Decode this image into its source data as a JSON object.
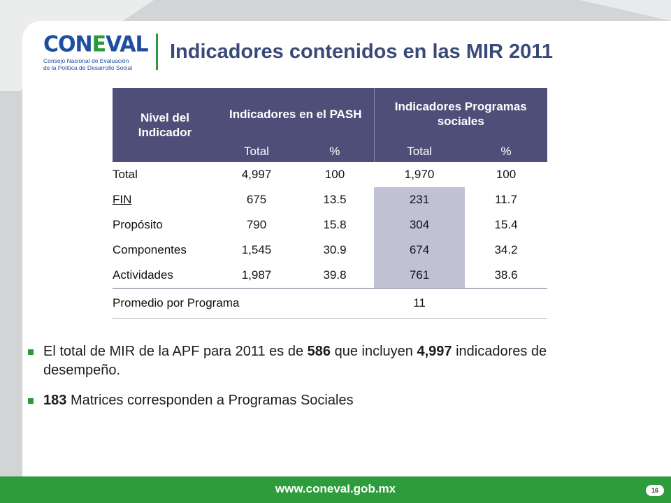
{
  "logo": {
    "word_left": "CON",
    "word_l": "E",
    "word_right": "VAL",
    "subtitle_line1": "Consejo Nacional de Evaluación",
    "subtitle_line2": "de la Política de Desarrollo Social"
  },
  "title": "Indicadores contenidos en las MIR 2011",
  "table": {
    "header": {
      "nivel": "Nivel del Indicador",
      "pash": "Indicadores en el PASH",
      "sociales": "Indicadores Programas sociales",
      "total": "Total",
      "pct": "%"
    },
    "rows": [
      {
        "label": "Total",
        "pash_total": "4,997",
        "pash_pct": "100",
        "soc_total": "1,970",
        "soc_pct": "100"
      },
      {
        "label": "FIN",
        "pash_total": "675",
        "pash_pct": "13.5",
        "soc_total": "231",
        "soc_pct": "11.7"
      },
      {
        "label": "Propósito",
        "pash_total": "790",
        "pash_pct": "15.8",
        "soc_total": "304",
        "soc_pct": "15.4"
      },
      {
        "label": "Componentes",
        "pash_total": "1,545",
        "pash_pct": "30.9",
        "soc_total": "674",
        "soc_pct": "34.2"
      },
      {
        "label": "Actividades",
        "pash_total": "1,987",
        "pash_pct": "39.8",
        "soc_total": "761",
        "soc_pct": "38.6"
      }
    ],
    "promedio": {
      "label": "Promedio por Programa",
      "value": "11"
    }
  },
  "bullets": {
    "b1_pre": "El total de MIR de la APF para 2011 es de",
    "b1_num": "586",
    "b1_mid": "que incluyen",
    "b1_num2": "4,997",
    "b1_post": "indicadores de desempeño.",
    "b2_num": "183",
    "b2_post": "Matrices corresponden a Programas Sociales"
  },
  "footer": {
    "url": "www.conevaI.gob.mx",
    "page": "16"
  },
  "colors": {
    "header_bg": "#4f4e78",
    "shade": "#c1c1d4",
    "accent_green": "#2e9b3d",
    "title_color": "#3a4a78",
    "logo_blue": "#1f4ea1"
  }
}
